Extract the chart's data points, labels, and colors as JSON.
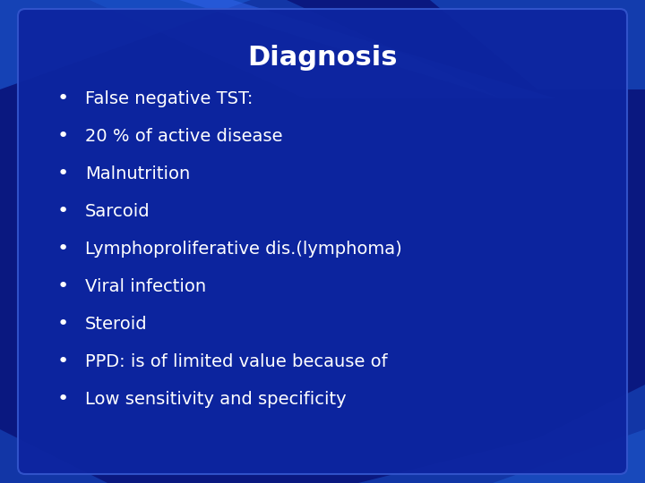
{
  "title": "Diagnosis",
  "title_fontsize": 22,
  "title_color": "#ffffff",
  "bullet_items": [
    "False negative TST:",
    "20 % of active disease",
    "Malnutrition",
    "Sarcoid",
    "Lymphoproliferative dis.(lymphoma)",
    "Viral infection",
    "Steroid",
    "PPD: is of limited value because of",
    "Low sensitivity and specificity"
  ],
  "bullet_fontsize": 14,
  "bullet_color": "#ffffff",
  "bullet_symbol": "•",
  "outer_bg_color": "#0a1880",
  "panel_color": "#0d25a0",
  "panel_edge_color": "#3355cc",
  "deco_color1": "#1a55cc",
  "deco_color2": "#2266dd"
}
